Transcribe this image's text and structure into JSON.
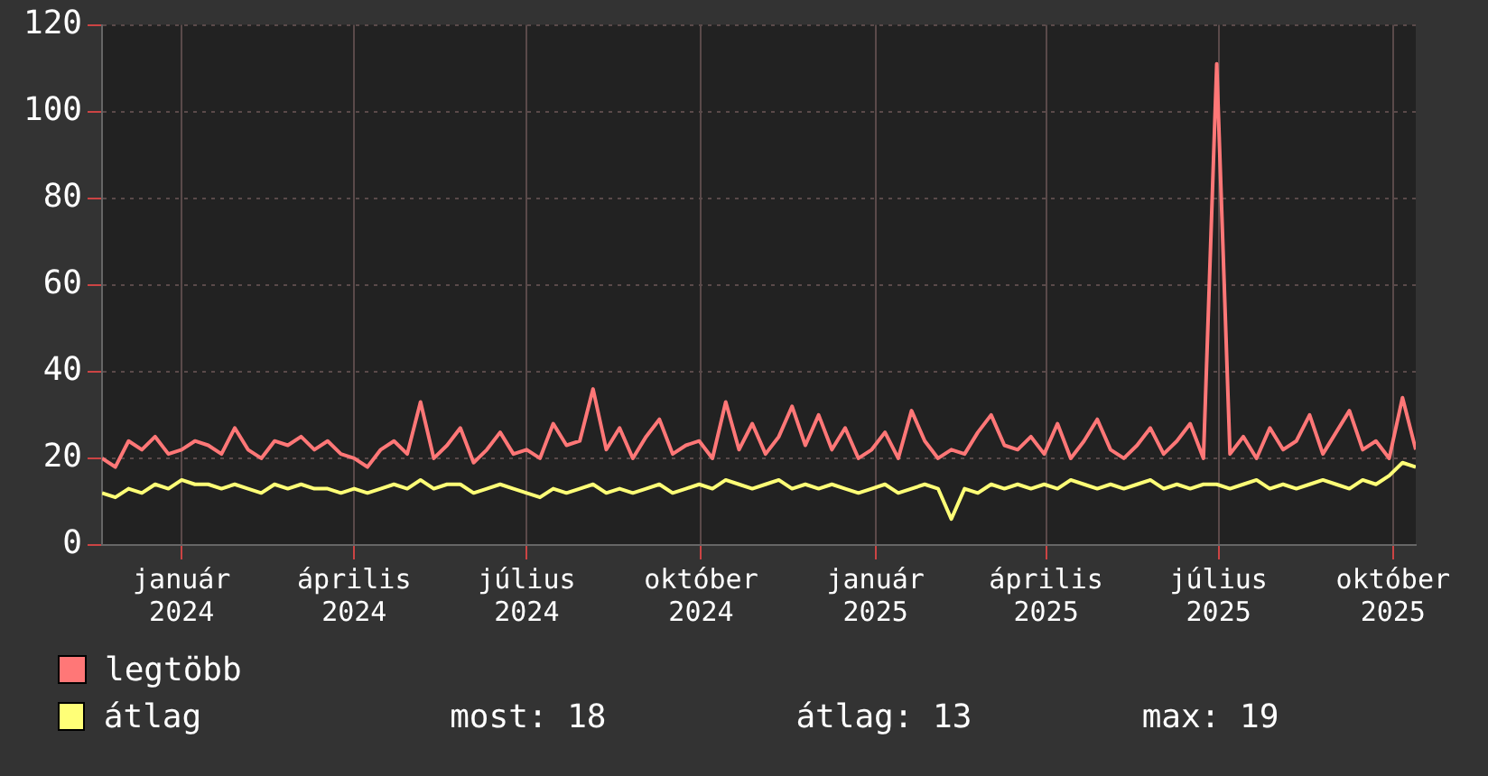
{
  "chart_data": {
    "type": "line",
    "x": [
      "2023-11-20",
      "2023-11-27",
      "2023-12-04",
      "2023-12-11",
      "2023-12-18",
      "2023-12-25",
      "2024-01-01",
      "2024-01-08",
      "2024-01-15",
      "2024-01-22",
      "2024-01-29",
      "2024-02-05",
      "2024-02-12",
      "2024-02-19",
      "2024-02-26",
      "2024-03-04",
      "2024-03-11",
      "2024-03-18",
      "2024-03-25",
      "2024-04-01",
      "2024-04-08",
      "2024-04-15",
      "2024-04-22",
      "2024-04-29",
      "2024-05-06",
      "2024-05-13",
      "2024-05-20",
      "2024-05-27",
      "2024-06-03",
      "2024-06-10",
      "2024-06-17",
      "2024-06-24",
      "2024-07-01",
      "2024-07-08",
      "2024-07-15",
      "2024-07-22",
      "2024-07-29",
      "2024-08-05",
      "2024-08-12",
      "2024-08-19",
      "2024-08-26",
      "2024-09-02",
      "2024-09-09",
      "2024-09-16",
      "2024-09-23",
      "2024-09-30",
      "2024-10-07",
      "2024-10-14",
      "2024-10-21",
      "2024-10-28",
      "2024-11-04",
      "2024-11-11",
      "2024-11-18",
      "2024-11-25",
      "2024-12-02",
      "2024-12-09",
      "2024-12-16",
      "2024-12-23",
      "2024-12-30",
      "2025-01-06",
      "2025-01-13",
      "2025-01-20",
      "2025-01-27",
      "2025-02-03",
      "2025-02-10",
      "2025-02-17",
      "2025-02-24",
      "2025-03-03",
      "2025-03-10",
      "2025-03-17",
      "2025-03-24",
      "2025-03-31",
      "2025-04-07",
      "2025-04-14",
      "2025-04-21",
      "2025-04-28",
      "2025-05-05",
      "2025-05-12",
      "2025-05-19",
      "2025-05-26",
      "2025-06-02",
      "2025-06-09",
      "2025-06-16",
      "2025-06-23",
      "2025-06-30",
      "2025-07-07",
      "2025-07-14",
      "2025-07-21",
      "2025-07-28",
      "2025-08-04",
      "2025-08-11",
      "2025-08-18",
      "2025-08-25",
      "2025-09-01",
      "2025-09-08",
      "2025-09-15",
      "2025-09-22",
      "2025-09-29",
      "2025-10-06",
      "2025-10-13"
    ],
    "series": [
      {
        "name": "legtöbb",
        "color": "#ff7777",
        "values": [
          20,
          18,
          24,
          22,
          25,
          21,
          22,
          24,
          23,
          21,
          27,
          22,
          20,
          24,
          23,
          25,
          22,
          24,
          21,
          20,
          18,
          22,
          24,
          21,
          33,
          20,
          23,
          27,
          19,
          22,
          26,
          21,
          22,
          20,
          28,
          23,
          24,
          36,
          22,
          27,
          20,
          25,
          29,
          21,
          23,
          24,
          20,
          33,
          22,
          28,
          21,
          25,
          32,
          23,
          30,
          22,
          27,
          20,
          22,
          26,
          20,
          31,
          24,
          20,
          22,
          21,
          26,
          30,
          23,
          22,
          25,
          21,
          28,
          20,
          24,
          29,
          22,
          20,
          23,
          27,
          21,
          24,
          28,
          20,
          111,
          21,
          25,
          20,
          27,
          22,
          24,
          30,
          21,
          26,
          31,
          22,
          24,
          20,
          34,
          22
        ]
      },
      {
        "name": "átlag",
        "color": "#ffff77",
        "values": [
          12,
          11,
          13,
          12,
          14,
          13,
          15,
          14,
          14,
          13,
          14,
          13,
          12,
          14,
          13,
          14,
          13,
          13,
          12,
          13,
          12,
          13,
          14,
          13,
          15,
          13,
          14,
          14,
          12,
          13,
          14,
          13,
          12,
          11,
          13,
          12,
          13,
          14,
          12,
          13,
          12,
          13,
          14,
          12,
          13,
          14,
          13,
          15,
          14,
          13,
          14,
          15,
          13,
          14,
          13,
          14,
          13,
          12,
          13,
          14,
          12,
          13,
          14,
          13,
          6,
          13,
          12,
          14,
          13,
          14,
          13,
          14,
          13,
          15,
          14,
          13,
          14,
          13,
          14,
          15,
          13,
          14,
          13,
          14,
          14,
          13,
          14,
          15,
          13,
          14,
          13,
          14,
          15,
          14,
          13,
          15,
          14,
          16,
          19,
          18
        ]
      }
    ],
    "xlim": [
      "2023-11-20",
      "2025-10-13"
    ],
    "xticks": [
      {
        "value": "2024-01-01",
        "label": "január 2024"
      },
      {
        "value": "2024-04-01",
        "label": "április 2024"
      },
      {
        "value": "2024-07-01",
        "label": "július 2024"
      },
      {
        "value": "2024-10-01",
        "label": "október 2024"
      },
      {
        "value": "2025-01-01",
        "label": "január 2025"
      },
      {
        "value": "2025-04-01",
        "label": "április 2025"
      },
      {
        "value": "2025-07-01",
        "label": "július 2025"
      },
      {
        "value": "2025-10-01",
        "label": "október 2025"
      }
    ],
    "ylim": [
      0,
      120
    ],
    "yticks": [
      0,
      20,
      40,
      60,
      80,
      100,
      120
    ],
    "grid": true,
    "legend": "bottom",
    "marker": "none",
    "line_style": "solid",
    "annotations": [
      "most: 18",
      "átlag: 13",
      "max: 19"
    ]
  }
}
